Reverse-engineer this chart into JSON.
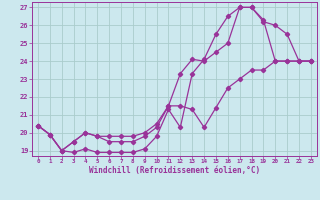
{
  "xlabel": "Windchill (Refroidissement éolien,°C)",
  "background_color": "#cce8ee",
  "grid_color": "#aacccc",
  "line_color": "#993399",
  "spine_color": "#993399",
  "xlim": [
    -0.5,
    23.5
  ],
  "ylim": [
    18.7,
    27.3
  ],
  "xticks": [
    0,
    1,
    2,
    3,
    4,
    5,
    6,
    7,
    8,
    9,
    10,
    11,
    12,
    13,
    14,
    15,
    16,
    17,
    18,
    19,
    20,
    21,
    22,
    23
  ],
  "yticks": [
    19,
    20,
    21,
    22,
    23,
    24,
    25,
    26,
    27
  ],
  "line1_x": [
    0,
    1,
    2,
    3,
    4,
    5,
    6,
    7,
    8,
    9,
    10,
    11,
    12,
    13,
    14,
    15,
    16,
    17,
    18,
    19,
    20,
    21,
    22,
    23
  ],
  "line1_y": [
    20.4,
    19.9,
    19.0,
    18.9,
    19.1,
    18.9,
    18.9,
    18.9,
    18.9,
    19.1,
    19.8,
    21.3,
    20.3,
    23.3,
    24.1,
    25.5,
    26.5,
    27.0,
    27.0,
    26.3,
    24.0,
    24.0,
    24.0,
    24.0
  ],
  "line2_x": [
    0,
    1,
    2,
    3,
    4,
    5,
    6,
    7,
    8,
    9,
    10,
    11,
    12,
    13,
    14,
    15,
    16,
    17,
    18,
    19,
    20,
    21,
    22,
    23
  ],
  "line2_y": [
    20.4,
    19.9,
    19.0,
    19.5,
    20.0,
    19.8,
    19.5,
    19.5,
    19.5,
    19.8,
    20.3,
    21.5,
    21.5,
    21.3,
    20.3,
    21.4,
    22.5,
    23.0,
    23.5,
    23.5,
    24.0,
    24.0,
    24.0,
    24.0
  ],
  "line3_x": [
    0,
    1,
    2,
    3,
    4,
    5,
    6,
    7,
    8,
    9,
    10,
    11,
    12,
    13,
    14,
    15,
    16,
    17,
    18,
    19,
    20,
    21,
    22,
    23
  ],
  "line3_y": [
    20.4,
    19.9,
    19.0,
    19.5,
    20.0,
    19.8,
    19.8,
    19.8,
    19.8,
    20.0,
    20.5,
    21.5,
    23.3,
    24.1,
    24.0,
    24.5,
    25.0,
    27.0,
    27.0,
    26.2,
    26.0,
    25.5,
    24.0,
    24.0
  ]
}
